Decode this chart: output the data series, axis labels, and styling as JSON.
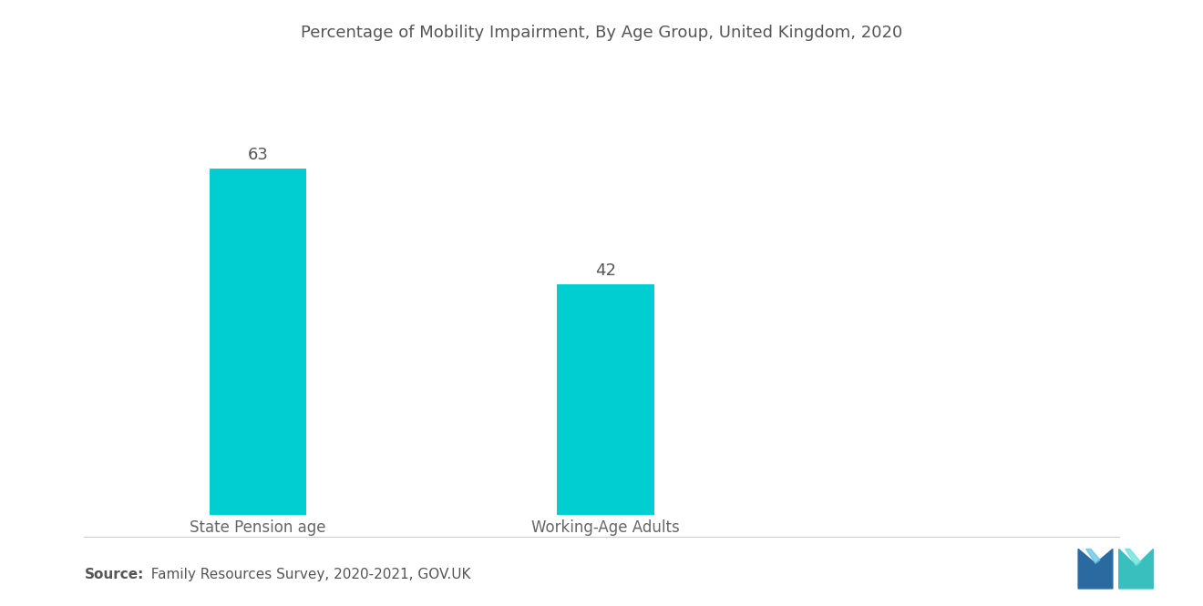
{
  "title": "Percentage of Mobility Impairment, By Age Group, United Kingdom, 2020",
  "categories": [
    "State Pension age",
    "Working-Age Adults"
  ],
  "values": [
    63,
    42
  ],
  "bar_color": "#00CED1",
  "bar_width": 0.28,
  "ylim": [
    0,
    75
  ],
  "value_label_fontsize": 13,
  "category_fontsize": 12,
  "title_fontsize": 13,
  "background_color": "#ffffff",
  "source_bold": "Source:",
  "source_rest": "  Family Resources Survey, 2020-2021, GOV.UK",
  "source_fontsize": 11,
  "bar_positions": [
    1,
    2
  ],
  "xlim": [
    0.5,
    3.2
  ]
}
